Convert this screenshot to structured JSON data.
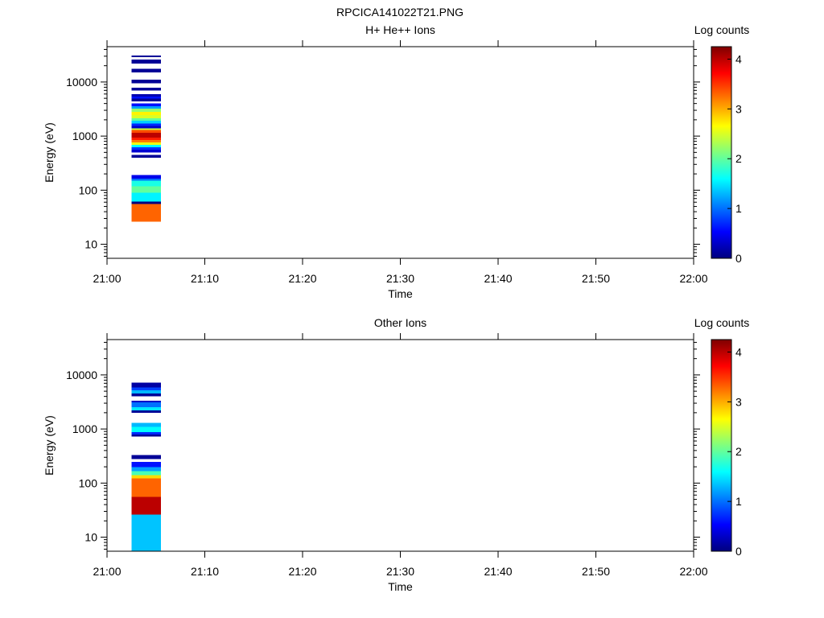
{
  "figure_title": "RPCICA141022T21.PNG",
  "colors": {
    "background": "#ffffff",
    "axes": "#000000"
  },
  "colormap": {
    "name": "jet",
    "stops": [
      "#00007f",
      "#0000ff",
      "#007fff",
      "#00ffff",
      "#7fff7f",
      "#ffff00",
      "#ff7f00",
      "#ff0000",
      "#7f0000"
    ]
  },
  "chart_data": [
    {
      "type": "heatmap",
      "title": "H+ He++ Ions",
      "xlabel": "Time",
      "ylabel": "Energy (eV)",
      "x_ticks": [
        "21:00",
        "21:10",
        "21:20",
        "21:30",
        "21:40",
        "21:50",
        "22:00"
      ],
      "x_range_minutes": [
        0,
        60
      ],
      "y_scale": "log",
      "y_range": [
        5.5,
        45000
      ],
      "y_ticks": [
        10,
        100,
        1000,
        10000
      ],
      "colorbar": {
        "label": "Log counts",
        "range": [
          0,
          4.25
        ],
        "ticks": [
          0,
          1,
          2,
          3,
          4
        ]
      },
      "time_bin_minutes": [
        2.5,
        5.5
      ],
      "bands": [
        {
          "e_low": 26,
          "e_high": 56,
          "value": 3.3
        },
        {
          "e_low": 56,
          "e_high": 62,
          "value": 0
        },
        {
          "e_low": 62,
          "e_high": 90,
          "value": 1.55
        },
        {
          "e_low": 90,
          "e_high": 118,
          "value": 2.0
        },
        {
          "e_low": 118,
          "e_high": 150,
          "value": 1.7
        },
        {
          "e_low": 150,
          "e_high": 163,
          "value": 1.0
        },
        {
          "e_low": 163,
          "e_high": 190,
          "value": 0.45
        },
        {
          "e_low": 400,
          "e_high": 450,
          "value": 0.1
        },
        {
          "e_low": 500,
          "e_high": 560,
          "value": 0.35
        },
        {
          "e_low": 560,
          "e_high": 620,
          "value": 0.75
        },
        {
          "e_low": 620,
          "e_high": 690,
          "value": 1.6
        },
        {
          "e_low": 690,
          "e_high": 760,
          "value": 2.6
        },
        {
          "e_low": 760,
          "e_high": 840,
          "value": 3.2
        },
        {
          "e_low": 840,
          "e_high": 930,
          "value": 3.6
        },
        {
          "e_low": 930,
          "e_high": 1150,
          "value": 4.0
        },
        {
          "e_low": 1150,
          "e_high": 1300,
          "value": 3.4
        },
        {
          "e_low": 1300,
          "e_high": 1400,
          "value": 2.4
        },
        {
          "e_low": 1400,
          "e_high": 1540,
          "value": 0.3
        },
        {
          "e_low": 1540,
          "e_high": 1720,
          "value": 0.7
        },
        {
          "e_low": 1720,
          "e_high": 1920,
          "value": 1.4
        },
        {
          "e_low": 1920,
          "e_high": 2150,
          "value": 2.0
        },
        {
          "e_low": 2150,
          "e_high": 2450,
          "value": 2.5
        },
        {
          "e_low": 2450,
          "e_high": 2800,
          "value": 2.7
        },
        {
          "e_low": 2800,
          "e_high": 3200,
          "value": 2.2
        },
        {
          "e_low": 3200,
          "e_high": 3550,
          "value": 1.2
        },
        {
          "e_low": 3550,
          "e_high": 4000,
          "value": 0.6
        },
        {
          "e_low": 4400,
          "e_high": 4900,
          "value": 0.1
        },
        {
          "e_low": 4900,
          "e_high": 5400,
          "value": 0.6
        },
        {
          "e_low": 5400,
          "e_high": 6000,
          "value": 0.2
        },
        {
          "e_low": 7000,
          "e_high": 7800,
          "value": 0.1
        },
        {
          "e_low": 9500,
          "e_high": 11000,
          "value": 0.1
        },
        {
          "e_low": 15000,
          "e_high": 17500,
          "value": 0.1
        },
        {
          "e_low": 22000,
          "e_high": 26000,
          "value": 0.1
        },
        {
          "e_low": 29000,
          "e_high": 31000,
          "value": 0.1
        }
      ]
    },
    {
      "type": "heatmap",
      "title": "Other Ions",
      "xlabel": "Time",
      "ylabel": "Energy (eV)",
      "x_ticks": [
        "21:00",
        "21:10",
        "21:20",
        "21:30",
        "21:40",
        "21:50",
        "22:00"
      ],
      "x_range_minutes": [
        0,
        60
      ],
      "y_scale": "log",
      "y_range": [
        5.5,
        45000
      ],
      "y_ticks": [
        10,
        100,
        1000,
        10000
      ],
      "colorbar": {
        "label": "Log counts",
        "range": [
          0,
          4.25
        ],
        "ticks": [
          0,
          1,
          2,
          3,
          4
        ]
      },
      "time_bin_minutes": [
        2.5,
        5.5
      ],
      "bands": [
        {
          "e_low": 5.5,
          "e_high": 26,
          "value": 1.35
        },
        {
          "e_low": 26,
          "e_high": 56,
          "value": 4.0
        },
        {
          "e_low": 56,
          "e_high": 123,
          "value": 3.3
        },
        {
          "e_low": 123,
          "e_high": 140,
          "value": 2.8
        },
        {
          "e_low": 140,
          "e_high": 165,
          "value": 1.9
        },
        {
          "e_low": 165,
          "e_high": 198,
          "value": 1.2
        },
        {
          "e_low": 198,
          "e_high": 245,
          "value": 0.6
        },
        {
          "e_low": 280,
          "e_high": 330,
          "value": 0.1
        },
        {
          "e_low": 720,
          "e_high": 790,
          "value": 0.1
        },
        {
          "e_low": 790,
          "e_high": 880,
          "value": 0.7
        },
        {
          "e_low": 880,
          "e_high": 1100,
          "value": 1.6
        },
        {
          "e_low": 1100,
          "e_high": 1300,
          "value": 1.3
        },
        {
          "e_low": 2000,
          "e_high": 2200,
          "value": 0.1
        },
        {
          "e_low": 2200,
          "e_high": 2550,
          "value": 1.5
        },
        {
          "e_low": 2550,
          "e_high": 3100,
          "value": 1.0
        },
        {
          "e_low": 3100,
          "e_high": 3350,
          "value": 0.3
        },
        {
          "e_low": 4000,
          "e_high": 4500,
          "value": 0.1
        },
        {
          "e_low": 4500,
          "e_high": 5200,
          "value": 1.3
        },
        {
          "e_low": 5200,
          "e_high": 5900,
          "value": 0.8
        },
        {
          "e_low": 5900,
          "e_high": 7200,
          "value": 0.15
        }
      ]
    }
  ]
}
